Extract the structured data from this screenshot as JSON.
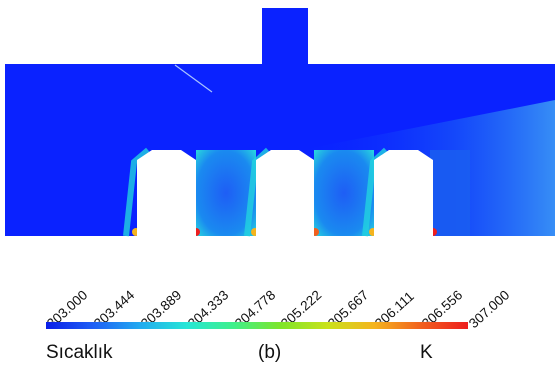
{
  "figure": {
    "quantity_label": "Sıcaklık",
    "panel_label": "(b)",
    "unit_label": "K"
  },
  "colorbar": {
    "min": 303.0,
    "max": 307.0,
    "ticks": [
      "303.000",
      "303.444",
      "303.889",
      "304.333",
      "304.778",
      "305.222",
      "305.667",
      "306.111",
      "306.556",
      "307.000"
    ],
    "colors": [
      "#0a1ee8",
      "#1f5ff5",
      "#22aaf0",
      "#26e6d6",
      "#3ef08a",
      "#7ee52a",
      "#c9e21a",
      "#f5b41e",
      "#f1601e",
      "#ee1e1e"
    ]
  },
  "chart_data": {
    "type": "heatmap",
    "title": "",
    "xlabel": "",
    "ylabel": "",
    "color_scale": {
      "min": 303.0,
      "max": 307.0,
      "unit": "K"
    }
  }
}
